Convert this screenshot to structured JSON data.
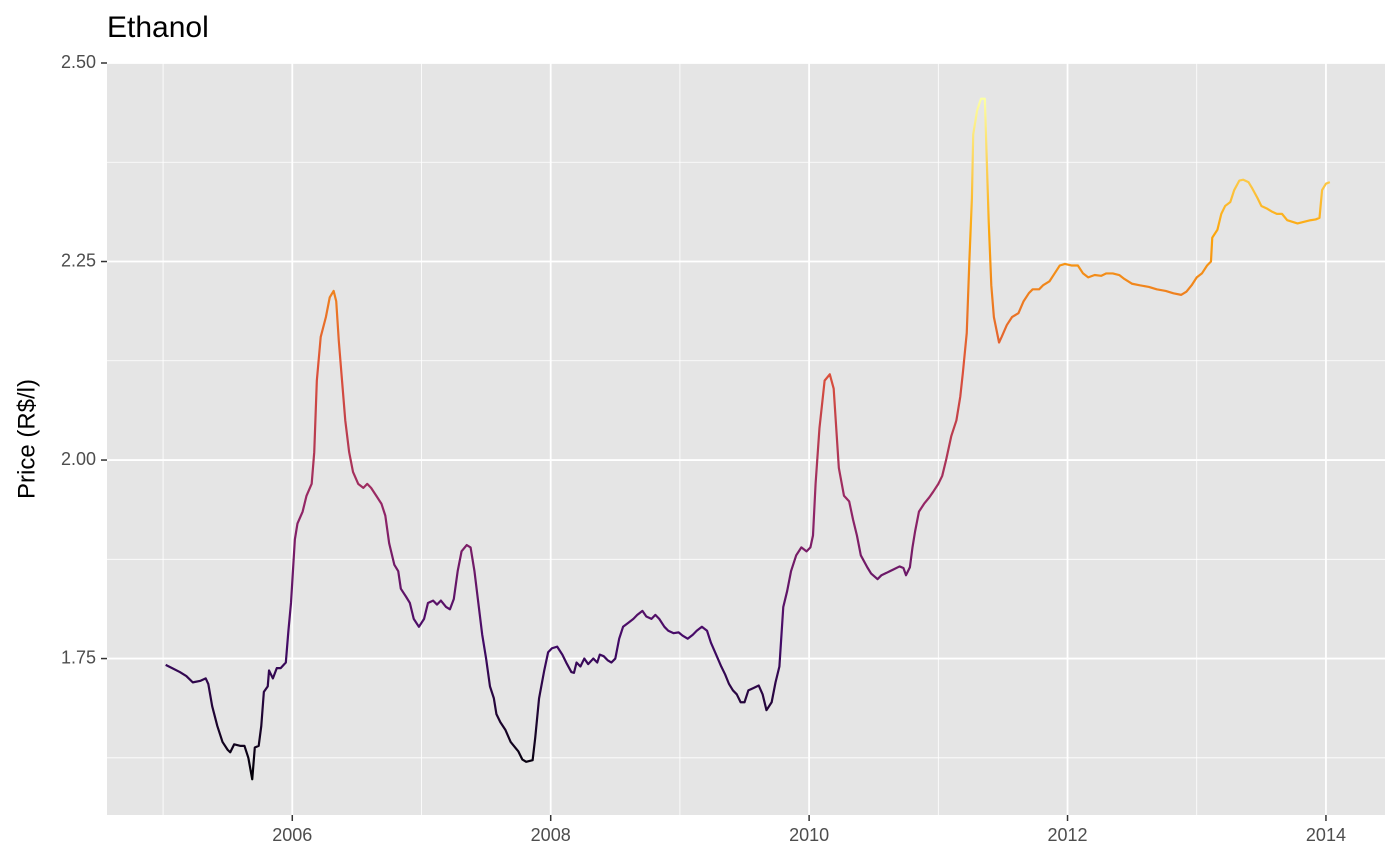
{
  "chart_data": {
    "type": "line",
    "title": "Ethanol",
    "y_label": "Price (R$/l)",
    "x": [
      2005.02,
      2005.07,
      2005.13,
      2005.18,
      2005.23,
      2005.29,
      2005.33,
      2005.35,
      2005.38,
      2005.42,
      2005.46,
      2005.5,
      2005.52,
      2005.55,
      2005.6,
      2005.63,
      2005.66,
      2005.69,
      2005.71,
      2005.74,
      2005.76,
      2005.78,
      2005.81,
      2005.82,
      2005.85,
      2005.88,
      2005.91,
      2005.95,
      2005.97,
      2005.99,
      2006.02,
      2006.04,
      2006.08,
      2006.11,
      2006.15,
      2006.17,
      2006.19,
      2006.22,
      2006.26,
      2006.29,
      2006.32,
      2006.34,
      2006.36,
      2006.39,
      2006.41,
      2006.44,
      2006.47,
      2006.51,
      2006.55,
      2006.58,
      2006.61,
      2006.65,
      2006.69,
      2006.72,
      2006.75,
      2006.79,
      2006.82,
      2006.84,
      2006.88,
      2006.91,
      2006.94,
      2006.98,
      2007.02,
      2007.05,
      2007.09,
      2007.12,
      2007.15,
      2007.19,
      2007.22,
      2007.25,
      2007.28,
      2007.31,
      2007.35,
      2007.38,
      2007.41,
      2007.44,
      2007.47,
      2007.5,
      2007.53,
      2007.56,
      2007.58,
      2007.61,
      2007.65,
      2007.69,
      2007.73,
      2007.75,
      2007.78,
      2007.81,
      2007.86,
      2007.88,
      2007.91,
      2007.95,
      2007.98,
      2008.01,
      2008.05,
      2008.09,
      2008.12,
      2008.16,
      2008.18,
      2008.2,
      2008.23,
      2008.26,
      2008.29,
      2008.33,
      2008.36,
      2008.38,
      2008.41,
      2008.44,
      2008.47,
      2008.5,
      2008.53,
      2008.56,
      2008.6,
      2008.64,
      2008.67,
      2008.71,
      2008.74,
      2008.78,
      2008.81,
      2008.84,
      2008.88,
      2008.91,
      2008.95,
      2008.99,
      2009.02,
      2009.06,
      2009.1,
      2009.13,
      2009.17,
      2009.21,
      2009.24,
      2009.28,
      2009.32,
      2009.35,
      2009.38,
      2009.41,
      2009.44,
      2009.47,
      2009.5,
      2009.53,
      2009.57,
      2009.61,
      2009.64,
      2009.67,
      2009.71,
      2009.74,
      2009.77,
      2009.8,
      2009.83,
      2009.86,
      2009.9,
      2009.94,
      2009.98,
      2010.01,
      2010.03,
      2010.05,
      2010.08,
      2010.1,
      2010.12,
      2010.16,
      2010.19,
      2010.21,
      2010.23,
      2010.27,
      2010.31,
      2010.34,
      2010.37,
      2010.4,
      2010.45,
      2010.48,
      2010.53,
      2010.56,
      2010.6,
      2010.65,
      2010.7,
      2010.73,
      2010.75,
      2010.78,
      2010.8,
      2010.82,
      2010.85,
      2010.89,
      2010.93,
      2010.96,
      2011.0,
      2011.03,
      2011.06,
      2011.1,
      2011.14,
      2011.17,
      2011.19,
      2011.22,
      2011.24,
      2011.26,
      2011.27,
      2011.3,
      2011.33,
      2011.36,
      2011.39,
      2011.41,
      2011.43,
      2011.47,
      2011.49,
      2011.53,
      2011.57,
      2011.62,
      2011.66,
      2011.7,
      2011.73,
      2011.78,
      2011.81,
      2011.86,
      2011.9,
      2011.94,
      2011.98,
      2012.03,
      2012.08,
      2012.12,
      2012.16,
      2012.21,
      2012.26,
      2012.3,
      2012.35,
      2012.4,
      2012.44,
      2012.5,
      2012.56,
      2012.63,
      2012.69,
      2012.76,
      2012.82,
      2012.88,
      2012.92,
      2012.96,
      2013.0,
      2013.04,
      2013.08,
      2013.11,
      2013.12,
      2013.16,
      2013.19,
      2013.22,
      2013.26,
      2013.29,
      2013.33,
      2013.36,
      2013.4,
      2013.43,
      2013.47,
      2013.5,
      2013.54,
      2013.58,
      2013.62,
      2013.66,
      2013.7,
      2013.74,
      2013.78,
      2013.83,
      2013.88,
      2013.92,
      2013.95,
      2013.97,
      2014.0,
      2014.03
    ],
    "values": [
      1.742,
      1.738,
      1.733,
      1.728,
      1.72,
      1.722,
      1.725,
      1.718,
      1.69,
      1.665,
      1.645,
      1.635,
      1.632,
      1.642,
      1.64,
      1.64,
      1.625,
      1.598,
      1.638,
      1.64,
      1.665,
      1.708,
      1.715,
      1.735,
      1.725,
      1.738,
      1.738,
      1.745,
      1.785,
      1.82,
      1.9,
      1.92,
      1.935,
      1.955,
      1.97,
      2.01,
      2.1,
      2.155,
      2.18,
      2.205,
      2.213,
      2.2,
      2.15,
      2.09,
      2.05,
      2.01,
      1.985,
      1.97,
      1.965,
      1.97,
      1.965,
      1.955,
      1.945,
      1.93,
      1.895,
      1.868,
      1.86,
      1.838,
      1.828,
      1.82,
      1.8,
      1.79,
      1.8,
      1.82,
      1.823,
      1.818,
      1.823,
      1.815,
      1.812,
      1.825,
      1.86,
      1.885,
      1.893,
      1.89,
      1.86,
      1.82,
      1.78,
      1.75,
      1.715,
      1.7,
      1.68,
      1.67,
      1.66,
      1.645,
      1.637,
      1.633,
      1.623,
      1.62,
      1.622,
      1.65,
      1.7,
      1.735,
      1.758,
      1.763,
      1.765,
      1.755,
      1.745,
      1.733,
      1.732,
      1.745,
      1.74,
      1.75,
      1.743,
      1.75,
      1.745,
      1.755,
      1.753,
      1.748,
      1.745,
      1.75,
      1.775,
      1.79,
      1.795,
      1.8,
      1.805,
      1.81,
      1.803,
      1.8,
      1.805,
      1.8,
      1.79,
      1.785,
      1.782,
      1.783,
      1.779,
      1.775,
      1.78,
      1.785,
      1.79,
      1.785,
      1.77,
      1.755,
      1.74,
      1.73,
      1.718,
      1.71,
      1.705,
      1.695,
      1.695,
      1.71,
      1.713,
      1.716,
      1.705,
      1.685,
      1.695,
      1.72,
      1.74,
      1.815,
      1.835,
      1.86,
      1.88,
      1.89,
      1.885,
      1.89,
      1.905,
      1.97,
      2.04,
      2.07,
      2.1,
      2.108,
      2.09,
      2.04,
      1.99,
      1.955,
      1.948,
      1.925,
      1.905,
      1.88,
      1.865,
      1.857,
      1.85,
      1.855,
      1.858,
      1.862,
      1.866,
      1.864,
      1.855,
      1.865,
      1.89,
      1.91,
      1.935,
      1.945,
      1.953,
      1.96,
      1.97,
      1.98,
      2.0,
      2.03,
      2.05,
      2.08,
      2.11,
      2.16,
      2.25,
      2.33,
      2.41,
      2.44,
      2.455,
      2.455,
      2.3,
      2.22,
      2.18,
      2.148,
      2.155,
      2.17,
      2.18,
      2.185,
      2.2,
      2.21,
      2.215,
      2.215,
      2.22,
      2.225,
      2.235,
      2.245,
      2.247,
      2.245,
      2.245,
      2.235,
      2.23,
      2.233,
      2.232,
      2.235,
      2.235,
      2.233,
      2.228,
      2.222,
      2.22,
      2.218,
      2.215,
      2.213,
      2.21,
      2.208,
      2.212,
      2.22,
      2.23,
      2.235,
      2.245,
      2.25,
      2.28,
      2.29,
      2.31,
      2.32,
      2.325,
      2.34,
      2.352,
      2.353,
      2.35,
      2.342,
      2.33,
      2.32,
      2.317,
      2.313,
      2.31,
      2.31,
      2.302,
      2.3,
      2.298,
      2.3,
      2.302,
      2.303,
      2.305,
      2.34,
      2.348,
      2.35
    ],
    "color_scale": [
      "#000004",
      "#420a68",
      "#932667",
      "#dd513a",
      "#fca50a",
      "#fcffa4"
    ],
    "xlim": [
      2004.566,
      2014.457
    ],
    "xticks": [
      2006,
      2008,
      2010,
      2012,
      2014
    ],
    "x_minor_grid": [
      2005,
      2007,
      2009,
      2011,
      2013
    ],
    "ylim": [
      1.553,
      2.5
    ],
    "yticks": [
      1.75,
      {
        "value": 2.0,
        "label": "2.00"
      },
      2.25,
      {
        "value": 2.5,
        "label": "2.50"
      }
    ],
    "y_minor_grid": [
      1.625,
      1.875,
      2.125,
      2.375
    ],
    "grid": true
  }
}
